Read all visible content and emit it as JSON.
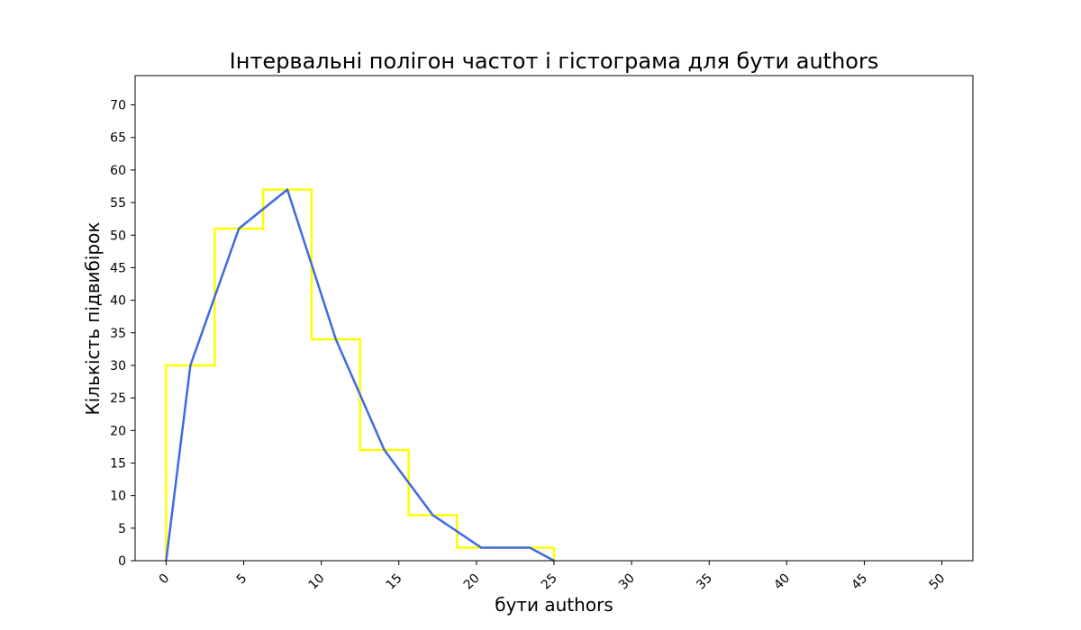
{
  "chart_data": {
    "type": "bar",
    "title": "Інтервальні полігон частот і гістограма для бути authors",
    "xlabel": "бути authors",
    "ylabel": "Кількість підвибірок",
    "xlim": [
      -2,
      52
    ],
    "ylim": [
      0,
      74.5
    ],
    "xticks": [
      0,
      5,
      10,
      15,
      20,
      25,
      30,
      35,
      40,
      45,
      50
    ],
    "yticks": [
      0,
      5,
      10,
      15,
      20,
      25,
      30,
      35,
      40,
      45,
      50,
      55,
      60,
      65,
      70
    ],
    "grid": false,
    "histogram": {
      "name": "histogram",
      "color": "#ffff00",
      "bin_edges": [
        0,
        3.125,
        6.25,
        9.375,
        12.5,
        15.625,
        18.75,
        21.875,
        25
      ],
      "counts": [
        30,
        51,
        57,
        34,
        17,
        7,
        2,
        2
      ]
    },
    "polygon": {
      "name": "polygon",
      "color": "#4169e1",
      "x": [
        0,
        1.5625,
        4.6875,
        7.8125,
        10.9375,
        14.0625,
        17.1875,
        20.3125,
        23.4375,
        25
      ],
      "y": [
        0,
        30,
        51,
        57,
        34,
        17,
        7,
        2,
        2,
        0
      ]
    }
  }
}
